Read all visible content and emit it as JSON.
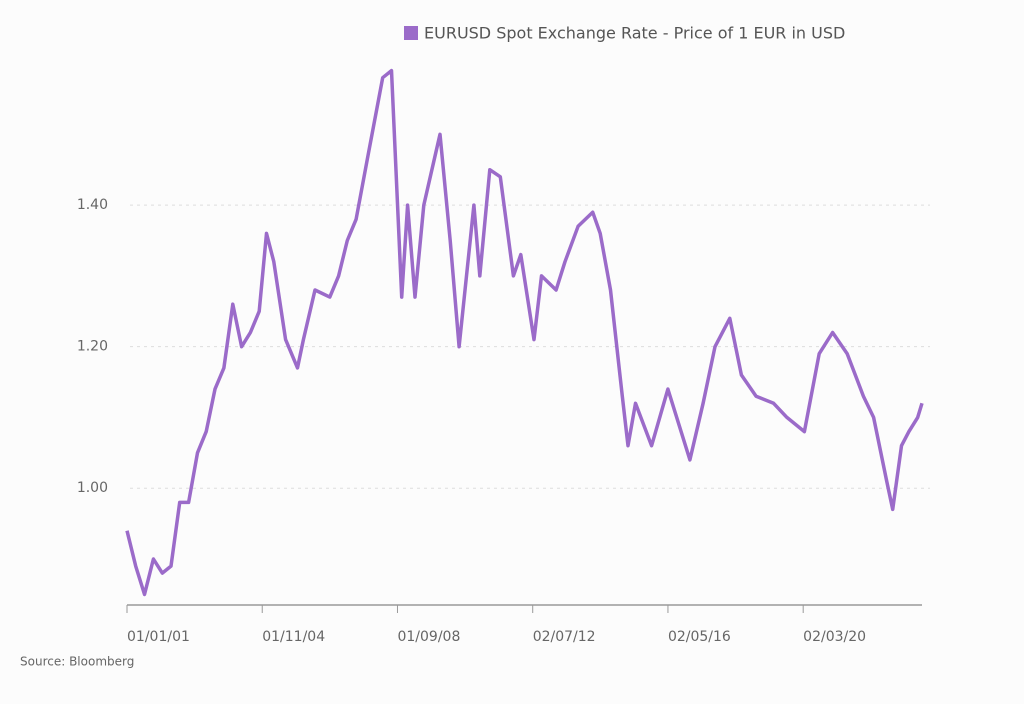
{
  "chart_data": {
    "type": "line",
    "series": [
      {
        "name": "EURUSD Spot Exchange Rate - Price of 1 EUR in USD",
        "color": "#9b6bc9",
        "x": [
          "2001-01-01",
          "2001-04-01",
          "2001-07-01",
          "2001-10-01",
          "2002-01-01",
          "2002-04-01",
          "2002-07-01",
          "2002-10-01",
          "2003-01-01",
          "2003-04-01",
          "2003-07-01",
          "2003-10-01",
          "2004-01-01",
          "2004-04-01",
          "2004-07-01",
          "2004-10-01",
          "2004-12-15",
          "2005-03-01",
          "2005-07-01",
          "2005-11-01",
          "2006-01-01",
          "2006-05-01",
          "2006-10-01",
          "2007-01-01",
          "2007-04-01",
          "2007-07-01",
          "2007-11-01",
          "2008-04-01",
          "2008-07-01",
          "2008-10-15",
          "2008-12-15",
          "2009-03-01",
          "2009-06-01",
          "2009-11-15",
          "2010-03-01",
          "2010-06-01",
          "2010-11-01",
          "2011-01-01",
          "2011-04-15",
          "2011-08-01",
          "2011-12-15",
          "2012-03-01",
          "2012-07-15",
          "2012-10-01",
          "2013-03-01",
          "2013-06-01",
          "2013-10-15",
          "2014-03-15",
          "2014-06-01",
          "2014-09-15",
          "2015-01-15",
          "2015-03-15",
          "2015-06-01",
          "2015-11-15",
          "2016-05-01",
          "2016-12-15",
          "2017-05-01",
          "2017-09-01",
          "2018-02-01",
          "2018-06-01",
          "2018-11-01",
          "2019-05-01",
          "2019-09-15",
          "2020-03-15",
          "2020-08-15",
          "2021-01-01",
          "2021-06-01",
          "2021-11-15",
          "2022-03-01",
          "2022-07-15",
          "2022-09-15",
          "2022-12-15",
          "2023-03-01",
          "2023-06-01",
          "2023-07-15"
        ],
        "values": [
          0.94,
          0.89,
          0.85,
          0.9,
          0.88,
          0.89,
          0.98,
          0.98,
          1.05,
          1.08,
          1.14,
          1.17,
          1.26,
          1.2,
          1.22,
          1.25,
          1.36,
          1.32,
          1.21,
          1.17,
          1.21,
          1.28,
          1.27,
          1.3,
          1.35,
          1.38,
          1.47,
          1.58,
          1.59,
          1.27,
          1.4,
          1.27,
          1.4,
          1.5,
          1.35,
          1.2,
          1.4,
          1.3,
          1.45,
          1.44,
          1.3,
          1.33,
          1.21,
          1.3,
          1.28,
          1.32,
          1.37,
          1.39,
          1.36,
          1.28,
          1.13,
          1.06,
          1.12,
          1.06,
          1.14,
          1.04,
          1.12,
          1.2,
          1.24,
          1.16,
          1.13,
          1.12,
          1.1,
          1.08,
          1.19,
          1.22,
          1.19,
          1.13,
          1.1,
          1.01,
          0.97,
          1.06,
          1.08,
          1.1,
          1.12
        ]
      }
    ],
    "xlim": [
      "2001-01-01",
      "2023-07-15"
    ],
    "xticks": [
      {
        "value": "2001-01-01",
        "label": "01/01/01"
      },
      {
        "value": "2004-11-01",
        "label": "01/11/04"
      },
      {
        "value": "2008-09-01",
        "label": "01/09/08"
      },
      {
        "value": "2012-07-02",
        "label": "02/07/12"
      },
      {
        "value": "2016-05-02",
        "label": "02/05/16"
      },
      {
        "value": "2020-03-02",
        "label": "02/03/20"
      }
    ],
    "ylim": [
      0.835,
      1.605
    ],
    "yticks": [
      {
        "value": 1,
        "label": "1.00"
      },
      {
        "value": 1.2,
        "label": "1.20"
      },
      {
        "value": 1.4,
        "label": "1.40"
      }
    ],
    "grid": true,
    "source": "Source: Bloomberg"
  }
}
